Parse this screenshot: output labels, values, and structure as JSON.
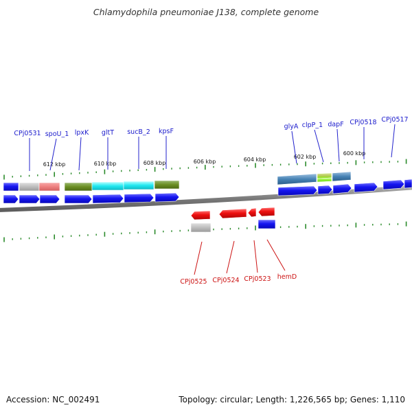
{
  "title": "Chlamydophila pneumoniae J138, complete genome",
  "footer": {
    "accession": "Accession: NC_002491",
    "summary": "Topology: circular; Length: 1,226,565 bp; Genes: 1,110"
  },
  "colors": {
    "forward_label": "#1a1acc",
    "reverse_label": "#cc1111",
    "gene_forward": "#1010ee",
    "gene_reverse": "#ee1010",
    "tick": "#2a8a2a",
    "backbone": "#808080"
  },
  "kbp_labels": [
    "612 kbp",
    "610 kbp",
    "608 kbp",
    "606 kbp",
    "604 kbp",
    "602 kbp",
    "600 kbp"
  ],
  "forward_gene_labels": [
    "CPj0531",
    "spoU_1",
    "lpxK",
    "gltT",
    "sucB_2",
    "kpsF",
    "glyA",
    "clpP_1",
    "dapF",
    "CPj0518",
    "CPj0517"
  ],
  "reverse_gene_labels": [
    "CPj0525",
    "CPj0524",
    "CPj0523",
    "hemD"
  ]
}
